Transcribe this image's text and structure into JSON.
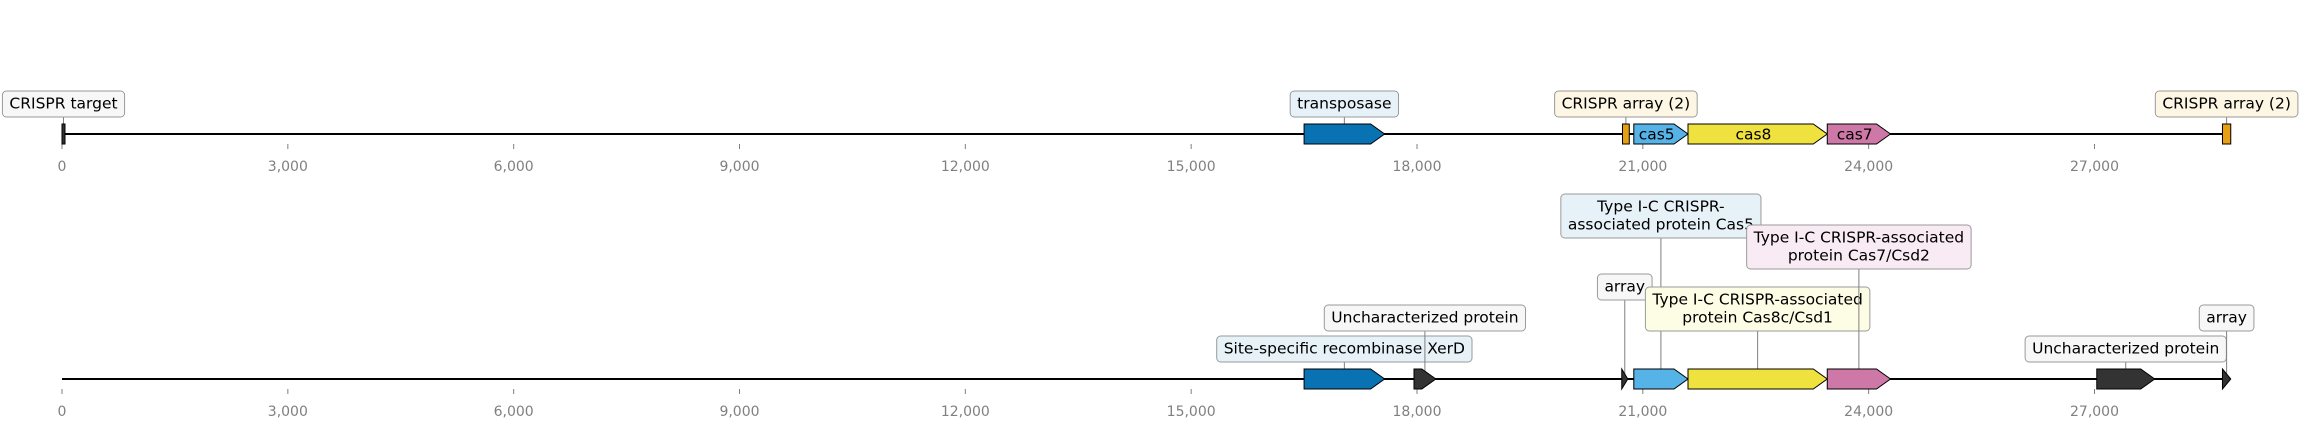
{
  "axis": {
    "min": 0,
    "max": 28800,
    "ticks": [
      {
        "value": 0,
        "label": "0"
      },
      {
        "value": 3000,
        "label": "3,000"
      },
      {
        "value": 6000,
        "label": "6,000"
      },
      {
        "value": 9000,
        "label": "9,000"
      },
      {
        "value": 12000,
        "label": "12,000"
      },
      {
        "value": 15000,
        "label": "15,000"
      },
      {
        "value": 18000,
        "label": "18,000"
      },
      {
        "value": 21000,
        "label": "21,000"
      },
      {
        "value": 24000,
        "label": "24,000"
      },
      {
        "value": 27000,
        "label": "27,000"
      }
    ]
  },
  "tracks": [
    {
      "id": "top",
      "features": [
        {
          "id": "crispr-target",
          "start": 0,
          "end": 25,
          "strand": 0,
          "fill": "#333333",
          "label": "CRISPR target",
          "label_fill": "#f7f7f7",
          "label_stroke": "#9a9a9a",
          "label_level": 1
        },
        {
          "id": "transposase",
          "start": 16500,
          "end": 17570,
          "strand": 1,
          "fill": "#0872b3",
          "label": "transposase",
          "label_fill": "#e6f1f8",
          "label_stroke": "#9a9a9a",
          "label_level": 1
        },
        {
          "id": "crispr-array-1",
          "start": 20730,
          "end": 20820,
          "strand": 0,
          "fill": "#e8a013",
          "label": "CRISPR array (2)",
          "label_fill": "#fdf6e4",
          "label_stroke": "#9a9a9a",
          "label_level": 1
        },
        {
          "id": "cas5",
          "start": 20880,
          "end": 21600,
          "strand": 1,
          "fill": "#56b3e8",
          "inner_label": "cas5"
        },
        {
          "id": "cas8",
          "start": 21600,
          "end": 23450,
          "strand": 1,
          "fill": "#efe13e",
          "inner_label": "cas8"
        },
        {
          "id": "cas7",
          "start": 23450,
          "end": 24290,
          "strand": 1,
          "fill": "#cd78a7",
          "inner_label": "cas7"
        },
        {
          "id": "crispr-array-2",
          "start": 28700,
          "end": 28810,
          "strand": 0,
          "fill": "#e8a013",
          "label": "CRISPR array (2)",
          "label_fill": "#fdf6e4",
          "label_stroke": "#9a9a9a",
          "label_level": 1
        }
      ]
    },
    {
      "id": "bottom",
      "features": [
        {
          "id": "recombinase-xerd",
          "start": 16500,
          "end": 17570,
          "strand": 1,
          "fill": "#0872b3",
          "label": "Site-specific recombinase XerD",
          "label_fill": "#e6f1f8",
          "label_stroke": "#9a9a9a",
          "label_level": 1
        },
        {
          "id": "uncharacterized-1",
          "start": 17960,
          "end": 18250,
          "strand": 1,
          "fill": "#333333",
          "label": "Uncharacterized protein",
          "label_fill": "#f7f7f7",
          "label_stroke": "#9a9a9a",
          "label_level": 2
        },
        {
          "id": "array-1",
          "start": 20720,
          "end": 20800,
          "strand": 1,
          "fill": "#333333",
          "label": "array",
          "label_fill": "#f7f7f7",
          "label_stroke": "#9a9a9a",
          "label_level": 3
        },
        {
          "id": "cas5-protein",
          "start": 20880,
          "end": 21600,
          "strand": 1,
          "fill": "#56b3e8",
          "label": "Type I-C CRISPR-\nassociated protein Cas5",
          "label_fill": "#e6f1f8",
          "label_stroke": "#9a9a9a",
          "label_level": 5
        },
        {
          "id": "cas8c-protein",
          "start": 21600,
          "end": 23450,
          "strand": 1,
          "fill": "#efe13e",
          "label": "Type I-C CRISPR-associated\nprotein Cas8c/Csd1",
          "label_fill": "#fdfce4",
          "label_stroke": "#9a9a9a",
          "label_level": 2
        },
        {
          "id": "cas7-protein",
          "start": 23450,
          "end": 24290,
          "strand": 1,
          "fill": "#cd78a7",
          "label": "Type I-C CRISPR-associated\nprotein Cas7/Csd2",
          "label_fill": "#f9ebf3",
          "label_stroke": "#9a9a9a",
          "label_level": 4
        },
        {
          "id": "uncharacterized-2",
          "start": 27030,
          "end": 27800,
          "strand": 1,
          "fill": "#333333",
          "label": "Uncharacterized protein",
          "label_fill": "#f7f7f7",
          "label_stroke": "#9a9a9a",
          "label_level": 1
        },
        {
          "id": "array-2",
          "start": 28700,
          "end": 28810,
          "strand": 1,
          "fill": "#333333",
          "label": "array",
          "label_fill": "#f7f7f7",
          "label_stroke": "#9a9a9a",
          "label_level": 2
        }
      ]
    }
  ]
}
